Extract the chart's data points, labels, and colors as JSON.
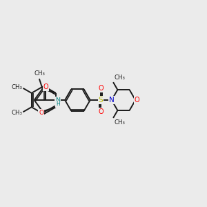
{
  "bg_color": "#ebebeb",
  "bond_color": "#1a1a1a",
  "O_color": "#ff0000",
  "N_color": "#0000cc",
  "S_color": "#bbbb00",
  "NH_color": "#008080",
  "figsize": [
    3.0,
    3.0
  ],
  "dpi": 100,
  "xlim": [
    0,
    12
  ],
  "ylim": [
    0,
    10
  ]
}
